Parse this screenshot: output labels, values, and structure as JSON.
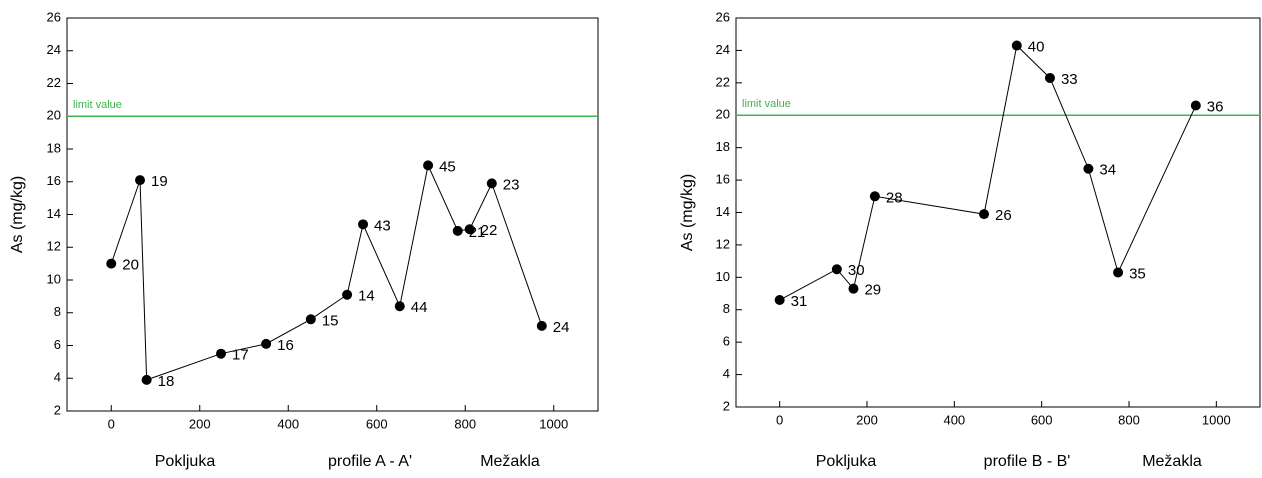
{
  "chart_data": [
    {
      "type": "line",
      "y_label": "As (mg/kg)",
      "x_captions": [
        "Pokljuka",
        "profile A - A'",
        "Mežakla"
      ],
      "reference_line": {
        "value": 20,
        "label": "limit value",
        "color": "#3cb54a"
      },
      "xlim": [
        -100,
        1100
      ],
      "xticks": [
        0,
        200,
        400,
        600,
        800,
        1000
      ],
      "ylim": [
        2,
        26
      ],
      "yticks": [
        2,
        4,
        6,
        8,
        10,
        12,
        14,
        16,
        18,
        20,
        22,
        24,
        26
      ],
      "series": [
        {
          "color": "#000000",
          "x": [
            0,
            65,
            80,
            248,
            350,
            451,
            533,
            569,
            652,
            716,
            783,
            810,
            860,
            973
          ],
          "values": [
            11,
            16.1,
            3.9,
            5.5,
            6.1,
            7.6,
            9.1,
            13.4,
            8.4,
            17.0,
            13.0,
            13.1,
            15.9,
            7.2
          ],
          "point_labels": [
            "20",
            "19",
            "18",
            "17",
            "16",
            "15",
            "14",
            "43",
            "44",
            "45",
            "21",
            "22",
            "23",
            "24"
          ]
        }
      ]
    },
    {
      "type": "line",
      "y_label": "As (mg/kg)",
      "x_captions": [
        "Pokljuka",
        "profile B - B'",
        "Mežakla"
      ],
      "reference_line": {
        "value": 20,
        "label": "limit value",
        "color": "#3cb54a"
      },
      "xlim": [
        -100,
        1100
      ],
      "xticks": [
        0,
        200,
        400,
        600,
        800,
        1000
      ],
      "ylim": [
        2,
        26
      ],
      "yticks": [
        2,
        4,
        6,
        8,
        10,
        12,
        14,
        16,
        18,
        20,
        22,
        24,
        26
      ],
      "series": [
        {
          "color": "#000000",
          "x": [
            0,
            131,
            169,
            218,
            468,
            543,
            619,
            707,
            775,
            953
          ],
          "values": [
            8.6,
            10.5,
            9.3,
            15.0,
            13.9,
            24.3,
            22.3,
            16.7,
            10.3,
            20.6
          ],
          "point_labels": [
            "31",
            "30",
            "29",
            "28",
            "26",
            "40",
            "33",
            "34",
            "35",
            "36"
          ]
        }
      ]
    }
  ]
}
